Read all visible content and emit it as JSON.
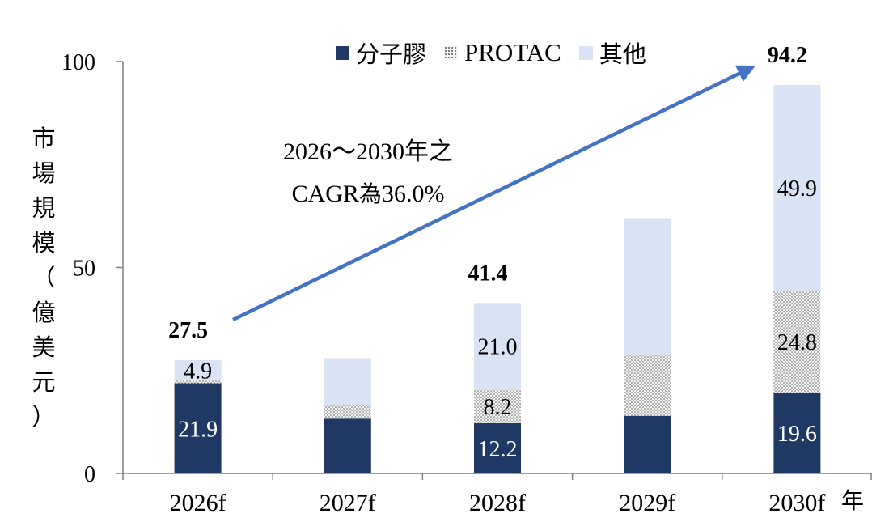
{
  "chart_data": {
    "type": "bar",
    "stacked": true,
    "categories": [
      "2026f",
      "2027f",
      "2028f",
      "2029f",
      "2030f"
    ],
    "series": [
      {
        "name": "分子膠",
        "values": [
          21.9,
          13.3,
          12.2,
          14.0,
          19.6
        ],
        "labels": [
          "21.9",
          "",
          "12.2",
          "",
          "19.6"
        ],
        "color": "#1f3864",
        "fill": "solid"
      },
      {
        "name": "PROTAC",
        "values": [
          0.7,
          3.3,
          8.2,
          15.0,
          24.8
        ],
        "labels": [
          "",
          "",
          "8.2",
          "",
          "24.8"
        ],
        "color": "#f2f2f2",
        "fill": "dotted"
      },
      {
        "name": "其他",
        "values": [
          4.9,
          11.4,
          21.0,
          33.0,
          49.9
        ],
        "labels": [
          "4.9",
          "",
          "21.0",
          "",
          "49.9"
        ],
        "color": "#dae3f3",
        "fill": "solid"
      }
    ],
    "totals": [
      "27.5",
      "",
      "41.4",
      "",
      "94.2"
    ],
    "ylim": [
      0,
      100
    ],
    "yticks": [
      0,
      50,
      100
    ],
    "ylabel": "市場規模（億美元）",
    "xunit": "年",
    "legend_position": "top-center",
    "grid": false,
    "annotation": {
      "line1": "2026～2030年之",
      "line2_prefix": "CAGR",
      "line2_zh": "為",
      "line2_value": "36.0%"
    },
    "arrow_color": "#4472c4"
  }
}
